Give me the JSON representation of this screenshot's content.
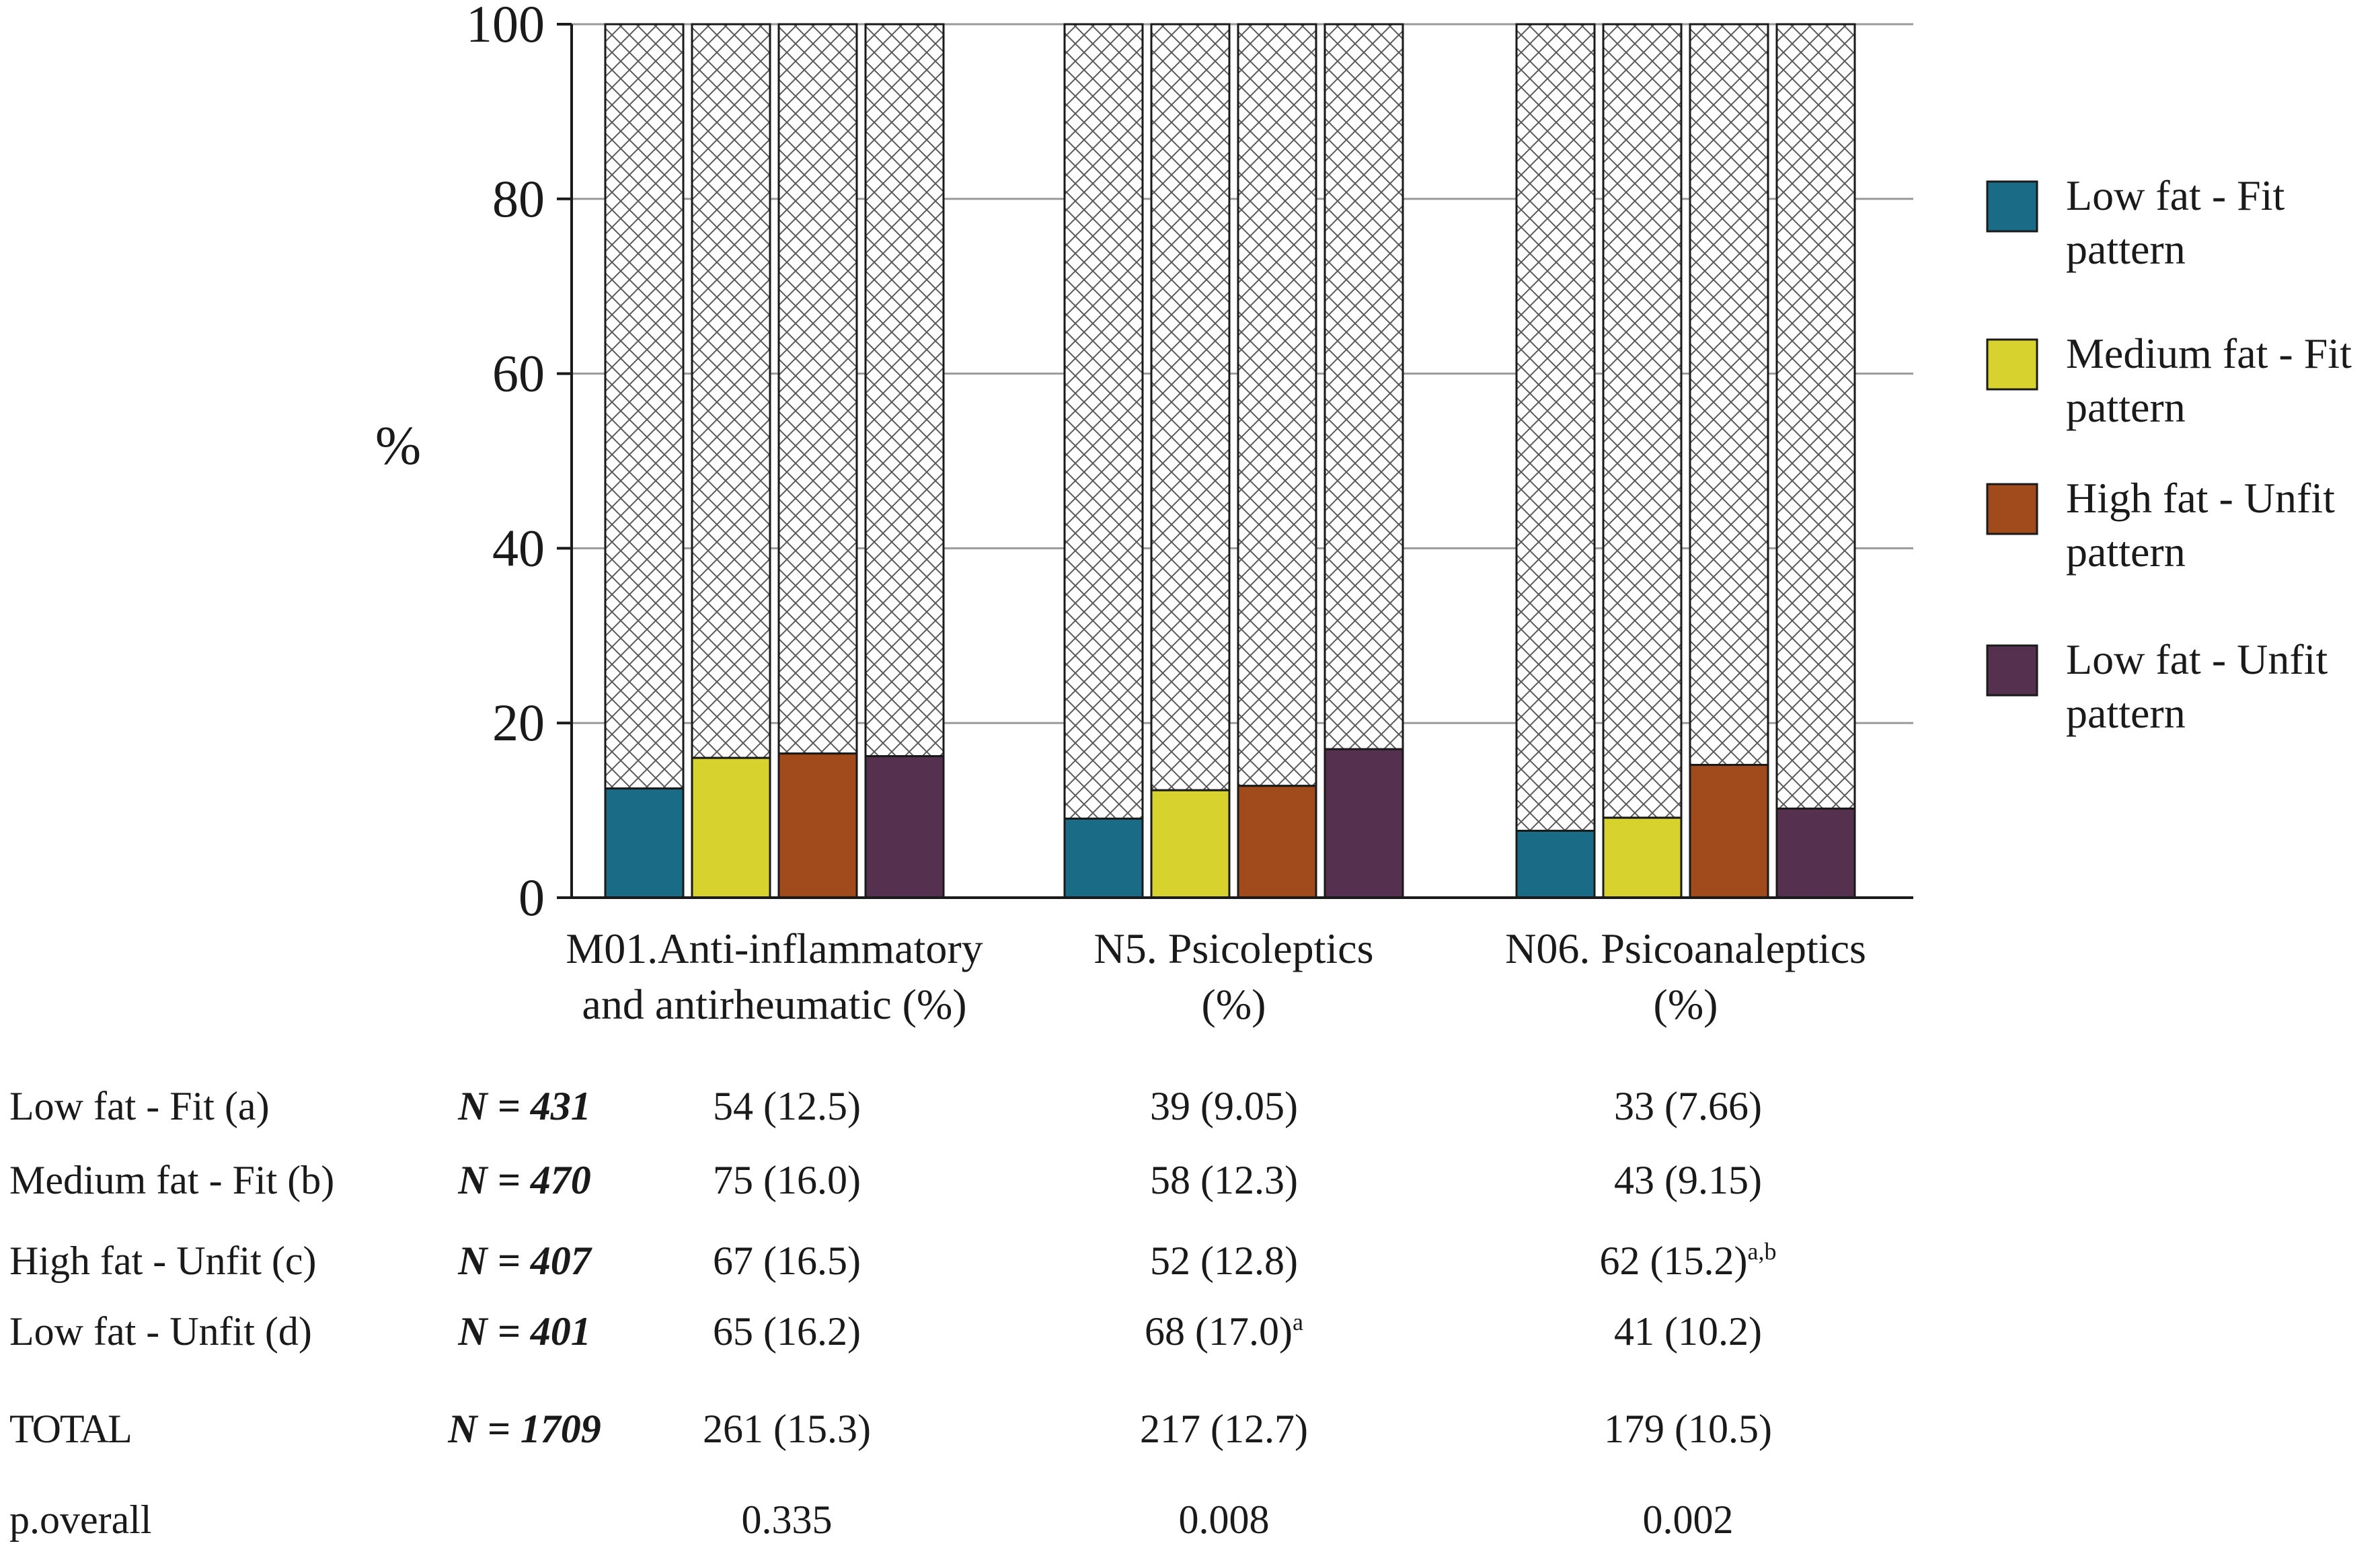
{
  "chart_data": {
    "type": "bar",
    "stacked_background": "hatched remainder to 100",
    "ylabel": "%",
    "ylim": [
      0,
      100
    ],
    "yticks": [
      0,
      20,
      40,
      60,
      80,
      100
    ],
    "grid": true,
    "legend_position": "right",
    "categories": [
      {
        "line1": "M01.Anti-inflammatory",
        "line2": "and antirheumatic (%)"
      },
      {
        "line1": "N5. Psicoleptics",
        "line2": "(%)"
      },
      {
        "line1": "N06. Psicoanaleptics",
        "line2": "(%)"
      }
    ],
    "series": [
      {
        "name": "Low fat - Fit",
        "legend_line1": "Low fat - Fit",
        "legend_line2": "pattern",
        "color": "#1a6b85",
        "values": [
          12.5,
          9.05,
          7.66
        ]
      },
      {
        "name": "Medium fat - Fit",
        "legend_line1": "Medium fat - Fit",
        "legend_line2": "pattern",
        "color": "#d8d22e",
        "values": [
          16.0,
          12.3,
          9.15
        ]
      },
      {
        "name": "High fat - Unfit",
        "legend_line1": "High fat - Unfit",
        "legend_line2": "pattern",
        "color": "#a14a1c",
        "values": [
          16.5,
          12.8,
          15.2
        ]
      },
      {
        "name": "Low fat - Unfit",
        "legend_line1": "Low fat - Unfit",
        "legend_line2": "pattern",
        "color": "#55304f",
        "values": [
          16.2,
          17.0,
          10.2
        ]
      }
    ]
  },
  "table": {
    "rows": [
      {
        "label": "Low fat - Fit (a)",
        "n": "N = 431",
        "v1": "54 (12.5)",
        "v2": "39 (9.05)",
        "v3": "33 (7.66)",
        "v2_sup": "",
        "v3_sup": ""
      },
      {
        "label": "Medium fat - Fit (b)",
        "n": "N = 470",
        "v1": "75 (16.0)",
        "v2": "58 (12.3)",
        "v3": "43 (9.15)",
        "v2_sup": "",
        "v3_sup": ""
      },
      {
        "label": "High fat - Unfit (c)",
        "n": "N = 407",
        "v1": "67 (16.5)",
        "v2": "52 (12.8)",
        "v3": "62 (15.2)",
        "v2_sup": "",
        "v3_sup": "a,b"
      },
      {
        "label": "Low fat - Unfit (d)",
        "n": "N = 401",
        "v1": "65 (16.2)",
        "v2": "68 (17.0)",
        "v3": "41 (10.2)",
        "v2_sup": "a",
        "v3_sup": ""
      },
      {
        "label": "TOTAL",
        "n": "N = 1709",
        "v1": "261 (15.3)",
        "v2": "217 (12.7)",
        "v3": "179 (10.5)",
        "v2_sup": "",
        "v3_sup": ""
      },
      {
        "label": "p.overall",
        "n": "",
        "v1": "0.335",
        "v2": "0.008",
        "v3": "0.002",
        "v2_sup": "",
        "v3_sup": ""
      }
    ]
  }
}
